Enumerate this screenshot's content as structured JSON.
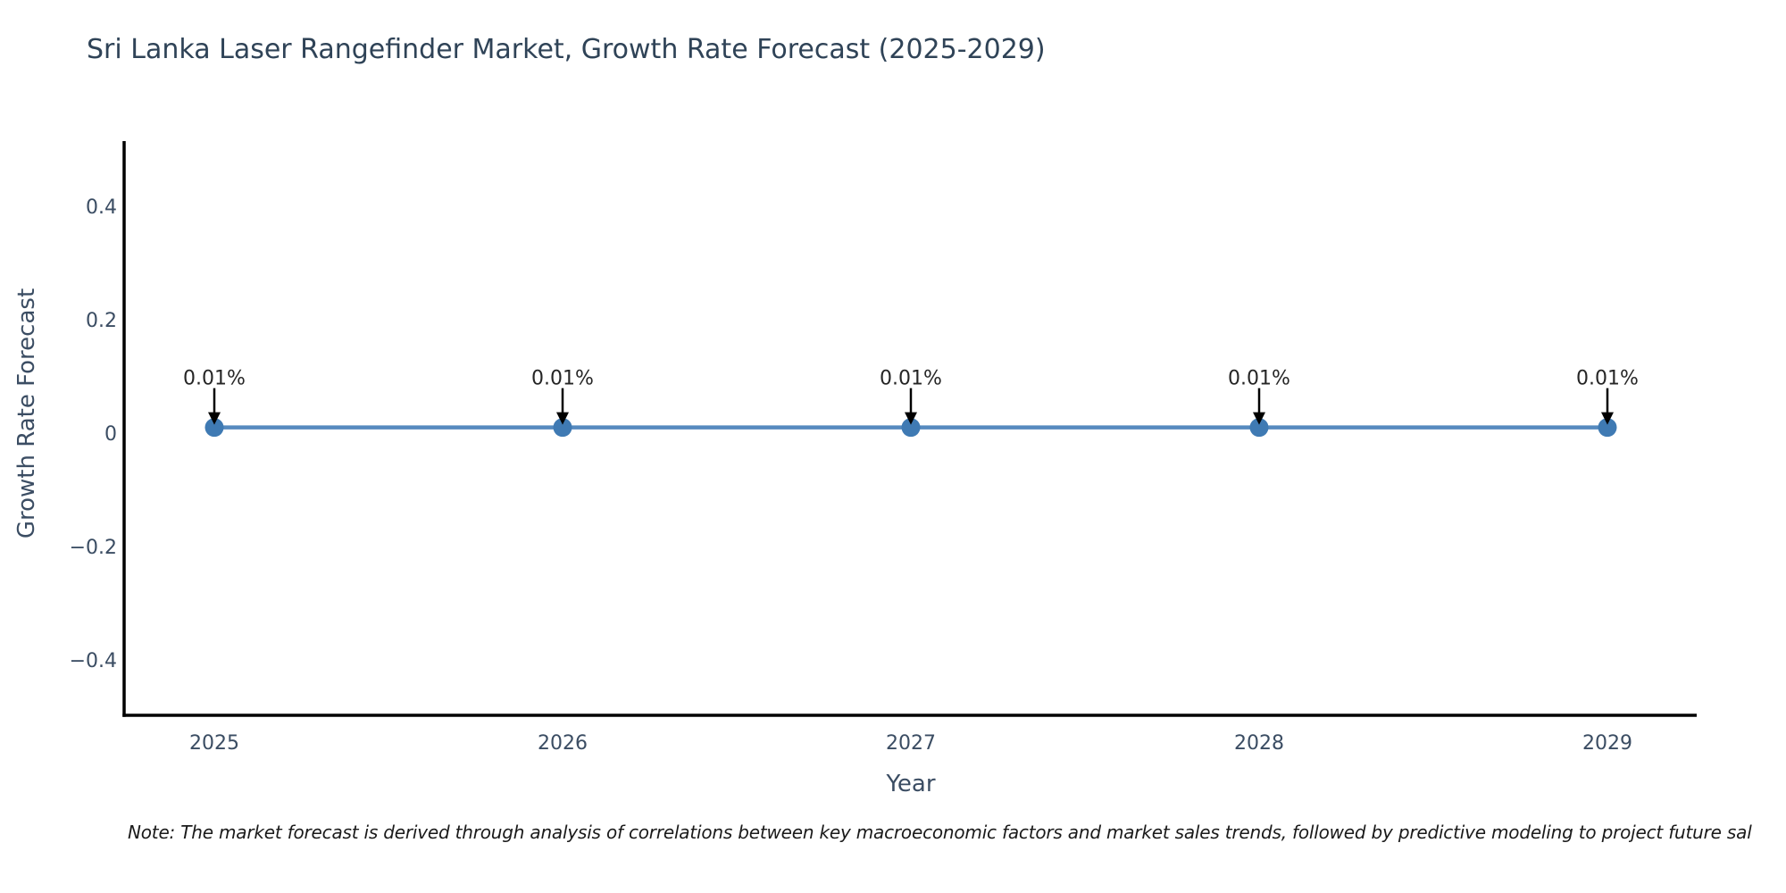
{
  "chart": {
    "title": "Sri Lanka Laser Rangefinder Market, Growth Rate Forecast (2025-2029)"
  },
  "note": {
    "text": "Note: The market forecast is derived through analysis of correlations between key macroeconomic factors and market sales trends, followed by predictive modeling to project future sal"
  },
  "chart_data": {
    "type": "line",
    "title": "Sri Lanka Laser Rangefinder Market, Growth Rate Forecast (2025-2029)",
    "xlabel": "Year",
    "ylabel": "Growth Rate Forecast",
    "categories": [
      "2025",
      "2026",
      "2027",
      "2028",
      "2029"
    ],
    "series": [
      {
        "name": "Growth Rate Forecast",
        "values": [
          0.01,
          0.01,
          0.01,
          0.01,
          0.01
        ],
        "unit": "%"
      }
    ],
    "point_labels": [
      "0.01%",
      "0.01%",
      "0.01%",
      "0.01%",
      "0.01%"
    ],
    "yticks": [
      {
        "label": "0.4",
        "value": 0.4
      },
      {
        "label": "0.2",
        "value": 0.2
      },
      {
        "label": "0",
        "value": 0.0
      },
      {
        "label": "−0.2",
        "value": -0.2
      },
      {
        "label": "−0.4",
        "value": -0.4
      }
    ],
    "ylim": [
      -0.5,
      0.51
    ],
    "grid": false,
    "legend_position": "none",
    "colors": {
      "line": "#568abf",
      "marker": "#3f7ab3",
      "annotation_arrow": "#000000",
      "annotation_text": "#262626",
      "axis_spine": "#000000",
      "tick_text": "#3b4d63",
      "title_text": "#2f4357"
    }
  }
}
